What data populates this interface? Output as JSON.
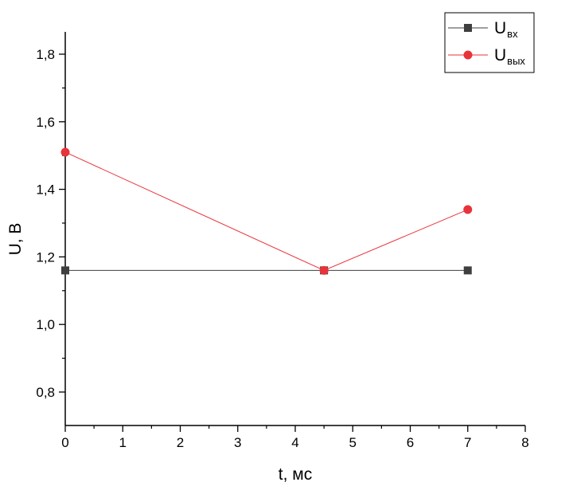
{
  "chart_data": {
    "type": "line",
    "title": "",
    "xlabel": "t, мс",
    "ylabel": "U, В",
    "xlim": [
      0,
      8
    ],
    "ylim": [
      0.7,
      1.8
    ],
    "x_ticks": [
      0,
      1,
      2,
      3,
      4,
      5,
      6,
      7,
      8
    ],
    "x_tick_labels": [
      "0",
      "1",
      "2",
      "3",
      "4",
      "5",
      "6",
      "7",
      "8"
    ],
    "y_ticks": [
      0.8,
      1.0,
      1.2,
      1.4,
      1.6,
      1.8
    ],
    "y_tick_labels": [
      "0,8",
      "1,0",
      "1,2",
      "1,4",
      "1,6",
      "1,8"
    ],
    "grid": false,
    "legend_position": "top-right",
    "series": [
      {
        "name_main": "U",
        "name_sub": "вх",
        "color": "#3f3f3f",
        "marker": "square",
        "x": [
          0,
          4.5,
          7
        ],
        "y": [
          1.16,
          1.16,
          1.16
        ]
      },
      {
        "name_main": "U",
        "name_sub": "вых",
        "color": "#e8333a",
        "marker": "circle",
        "x": [
          0,
          4.5,
          7
        ],
        "y": [
          1.51,
          1.16,
          1.34
        ]
      }
    ]
  }
}
